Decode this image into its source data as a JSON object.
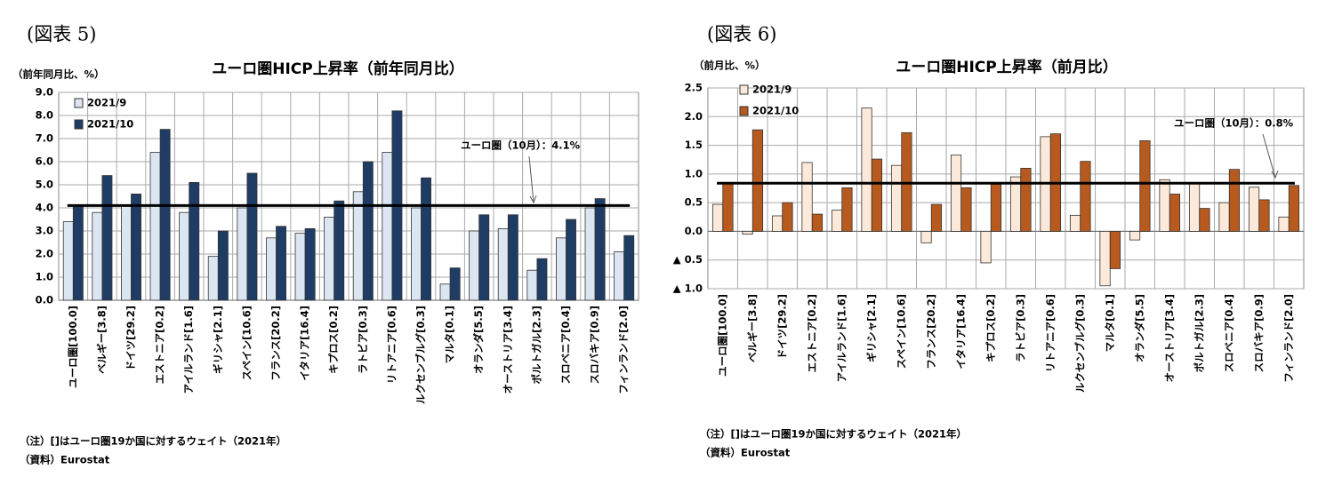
{
  "chart_data": [
    {
      "type": "bar",
      "figure_label": "(図表 5)",
      "title": "ユーロ圏HICP上昇率（前年同月比）",
      "y_axis_label": "（前年同月比、%）",
      "categories": [
        "ユーロ圏[100.0]",
        "ベルギー[3.8]",
        "ドイツ[29.2]",
        "エストニア[0.2]",
        "アイルランド[1.6]",
        "ギリシャ[2.1]",
        "スペイン[10.6]",
        "フランス[20.2]",
        "イタリア[16.4]",
        "キプロス[0.2]",
        "ラトビア[0.3]",
        "リトアニア[0.6]",
        "ルクセンブルグ[0.3]",
        "マルタ[0.1]",
        "オランダ[5.5]",
        "オーストリア[3.4]",
        "ポルトガル[2.3]",
        "スロベニア[0.4]",
        "スロバキア[0.9]",
        "フィンランド[2.0]"
      ],
      "series": [
        {
          "name": "2021/9",
          "color": "#dce6f2",
          "values": [
            3.4,
            3.8,
            4.1,
            6.4,
            3.8,
            1.9,
            4.0,
            2.7,
            2.9,
            3.6,
            4.7,
            6.4,
            4.0,
            0.7,
            3.0,
            3.1,
            1.3,
            2.7,
            4.0,
            2.1
          ]
        },
        {
          "name": "2021/10",
          "color": "#1f3d64",
          "values": [
            4.1,
            5.4,
            4.6,
            7.4,
            5.1,
            3.0,
            5.5,
            3.2,
            3.1,
            4.3,
            6.0,
            8.2,
            5.3,
            1.4,
            3.7,
            3.7,
            1.8,
            3.5,
            4.4,
            2.8
          ]
        }
      ],
      "reference_line": 4.1,
      "annotation": "ユーロ圏（10月）：4.1%",
      "ylim": [
        0,
        9
      ],
      "yticks": [
        {
          "value": 0,
          "label": "0.0"
        },
        {
          "value": 1,
          "label": "1.0"
        },
        {
          "value": 2,
          "label": "2.0"
        },
        {
          "value": 3,
          "label": "3.0"
        },
        {
          "value": 4,
          "label": "4.0"
        },
        {
          "value": 5,
          "label": "5.0"
        },
        {
          "value": 6,
          "label": "6.0"
        },
        {
          "value": 7,
          "label": "7.0"
        },
        {
          "value": 8,
          "label": "8.0"
        },
        {
          "value": 9,
          "label": "9.0"
        }
      ],
      "grid": true,
      "legend": "upper left",
      "note": "（注）[]はユーロ圏19か国に対するウェイト（2021年）",
      "source": "（資料）Eurostat"
    },
    {
      "type": "bar",
      "figure_label": "(図表 6)",
      "title": "ユーロ圏HICP上昇率（前月比）",
      "y_axis_label": "（前月比、%）",
      "categories": [
        "ユーロ圏[100.0]",
        "ベルギー[3.8]",
        "ドイツ[29.2]",
        "エストニア[0.2]",
        "アイルランド[1.6]",
        "ギリシャ[2.1]",
        "スペイン[10.6]",
        "フランス[20.2]",
        "イタリア[16.4]",
        "キプロス[0.2]",
        "ラトビア[0.3]",
        "リトアニア[0.6]",
        "ルクセンブルグ[0.3]",
        "マルタ[0.1]",
        "オランダ[5.5]",
        "オーストリア[3.4]",
        "ポルトガル[2.3]",
        "スロベニア[0.4]",
        "スロバキア[0.9]",
        "フィンランド[2.0]"
      ],
      "series": [
        {
          "name": "2021/9",
          "color": "#fde9d9",
          "values": [
            0.47,
            -0.05,
            0.27,
            1.2,
            0.37,
            2.15,
            1.15,
            -0.2,
            1.33,
            -0.55,
            0.95,
            1.65,
            0.28,
            -0.95,
            -0.15,
            0.9,
            0.85,
            0.5,
            0.77,
            0.25
          ]
        },
        {
          "name": "2021/10",
          "color": "#b85a1e",
          "values": [
            0.84,
            1.77,
            0.5,
            0.3,
            0.76,
            1.26,
            1.72,
            0.47,
            0.76,
            0.82,
            1.1,
            1.7,
            1.22,
            -0.65,
            1.58,
            0.65,
            0.4,
            1.08,
            0.55,
            0.8
          ]
        }
      ],
      "reference_line": 0.84,
      "annotation": "ユーロ圏（10月）：0.8%",
      "ylim": [
        -1,
        2.5
      ],
      "yticks": [
        {
          "value": -1,
          "label": "▲ 1.0"
        },
        {
          "value": -0.5,
          "label": "▲ 0.5"
        },
        {
          "value": 0,
          "label": "0.0"
        },
        0.5,
        {
          "value": 1,
          "label": "1.0"
        },
        1.5,
        {
          "value": 2,
          "label": "2.0"
        },
        2.5
      ],
      "grid": true,
      "legend": "upper left",
      "note": "（注）[]はユーロ圏19か国に対するウェイト（2021年）",
      "source": "（資料）Eurostat"
    }
  ]
}
